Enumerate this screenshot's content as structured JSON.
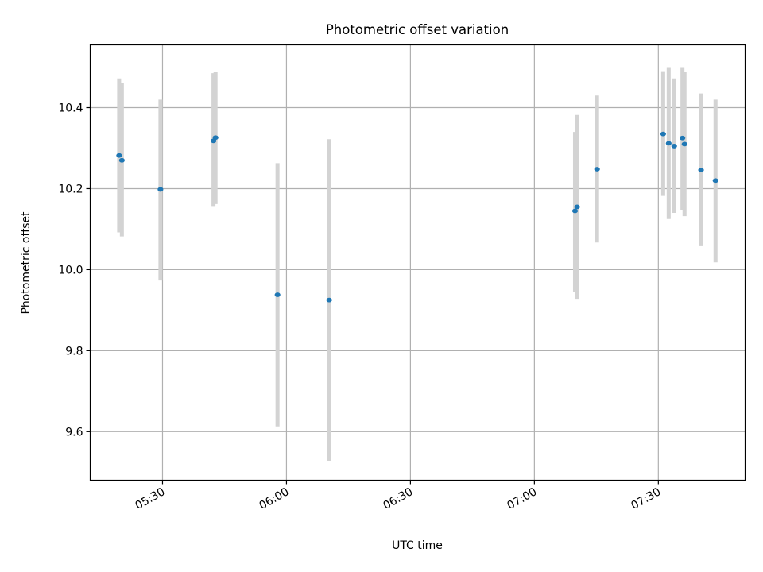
{
  "chart_data": {
    "type": "scatter",
    "title": "Photometric offset variation",
    "xlabel": "UTC time",
    "ylabel": "Photometric offset",
    "x_axis_type": "time",
    "xlim": [
      "05:12:30",
      "07:51:00"
    ],
    "ylim": [
      9.48,
      10.555
    ],
    "grid": true,
    "x_ticks": [
      "05:30",
      "06:00",
      "06:30",
      "07:00",
      "07:30"
    ],
    "x_tick_labels_rotated": true,
    "y_ticks": [
      9.6,
      9.8,
      10.0,
      10.2,
      10.4
    ],
    "y_tick_labels": [
      "9.6",
      "9.8",
      "10.0",
      "10.2",
      "10.4"
    ],
    "series": [
      {
        "marker_color": "#1f77b4",
        "errorbar_color": "#d3d3d3",
        "points": [
          {
            "x": "05:19:30",
            "y": 10.282,
            "yerr_low": 10.092,
            "yerr_high": 10.472
          },
          {
            "x": "05:20:10",
            "y": 10.27,
            "yerr_low": 10.082,
            "yerr_high": 10.46
          },
          {
            "x": "05:29:30",
            "y": 10.198,
            "yerr_low": 9.973,
            "yerr_high": 10.42
          },
          {
            "x": "05:42:20",
            "y": 10.318,
            "yerr_low": 10.157,
            "yerr_high": 10.485
          },
          {
            "x": "05:42:50",
            "y": 10.326,
            "yerr_low": 10.162,
            "yerr_high": 10.488
          },
          {
            "x": "05:57:50",
            "y": 9.938,
            "yerr_low": 9.613,
            "yerr_high": 10.263
          },
          {
            "x": "06:10:20",
            "y": 9.925,
            "yerr_low": 9.528,
            "yerr_high": 10.322
          },
          {
            "x": "07:09:50",
            "y": 10.145,
            "yerr_low": 9.945,
            "yerr_high": 10.34
          },
          {
            "x": "07:10:20",
            "y": 10.155,
            "yerr_low": 9.928,
            "yerr_high": 10.382
          },
          {
            "x": "07:15:10",
            "y": 10.248,
            "yerr_low": 10.067,
            "yerr_high": 10.43
          },
          {
            "x": "07:31:10",
            "y": 10.335,
            "yerr_low": 10.182,
            "yerr_high": 10.49
          },
          {
            "x": "07:32:30",
            "y": 10.312,
            "yerr_low": 10.125,
            "yerr_high": 10.5
          },
          {
            "x": "07:33:50",
            "y": 10.305,
            "yerr_low": 10.14,
            "yerr_high": 10.472
          },
          {
            "x": "07:35:50",
            "y": 10.325,
            "yerr_low": 10.148,
            "yerr_high": 10.5
          },
          {
            "x": "07:36:20",
            "y": 10.31,
            "yerr_low": 10.132,
            "yerr_high": 10.488
          },
          {
            "x": "07:40:20",
            "y": 10.246,
            "yerr_low": 10.058,
            "yerr_high": 10.435
          },
          {
            "x": "07:43:50",
            "y": 10.22,
            "yerr_low": 10.018,
            "yerr_high": 10.42
          }
        ]
      }
    ]
  }
}
